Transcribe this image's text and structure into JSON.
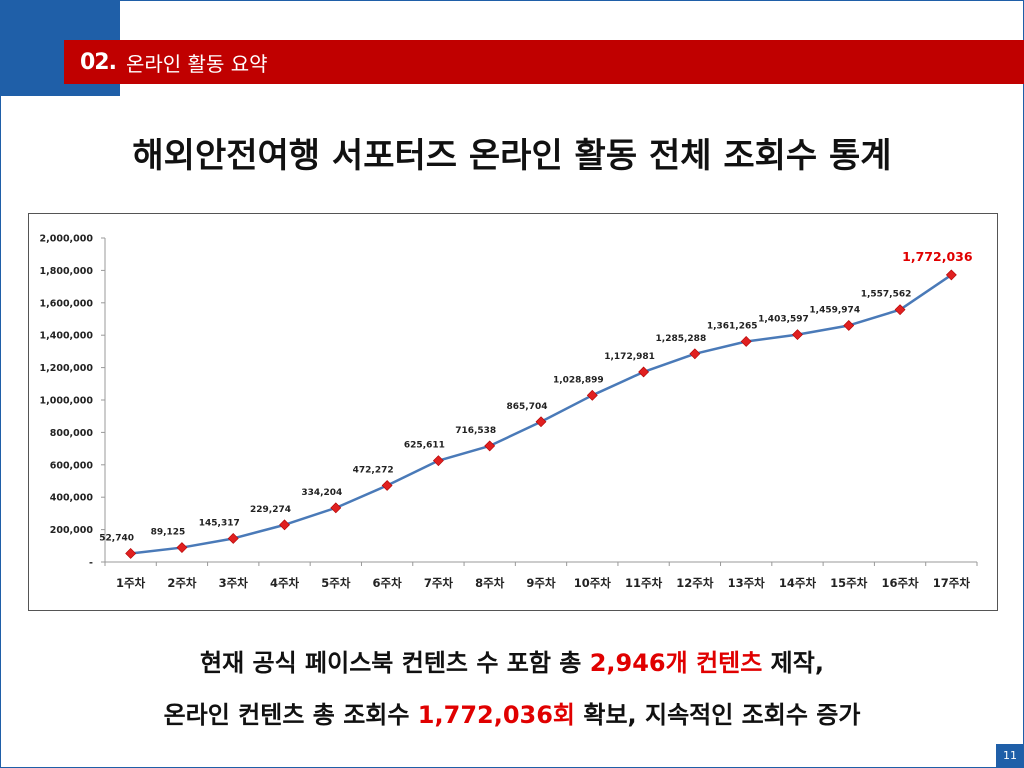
{
  "header": {
    "section_number": "02.",
    "section_title": "온라인 활동 요약"
  },
  "title": "해외안전여행 서포터즈 온라인 활동 전체 조회수 통계",
  "summary": {
    "line1": {
      "prefix": "현재 공식 페이스북 컨텐츠 수 포함 총 ",
      "highlight": "2,946개 컨텐츠",
      "suffix": " 제작,"
    },
    "line2": {
      "prefix": "온라인 컨텐츠 총 조회수 ",
      "highlight": "1,772,036회",
      "suffix": " 확보, 지속적인 조회수 증가"
    }
  },
  "page_number": "11",
  "colors": {
    "brand_blue": "#1f5fa8",
    "header_red": "#c00000",
    "highlight_red": "#e00000",
    "line": "#4a7ab8",
    "marker": "#e02020"
  },
  "chart_data": {
    "type": "line",
    "title": "",
    "xlabel": "",
    "ylabel": "",
    "ylim": [
      0,
      2000000
    ],
    "yticks": [
      0,
      200000,
      400000,
      600000,
      800000,
      1000000,
      1200000,
      1400000,
      1600000,
      1800000,
      2000000
    ],
    "ytick_labels": [
      "-",
      "200,000",
      "400,000",
      "600,000",
      "800,000",
      "1,000,000",
      "1,200,000",
      "1,400,000",
      "1,600,000",
      "1,800,000",
      "2,000,000"
    ],
    "categories": [
      "1주차",
      "2주차",
      "3주차",
      "4주차",
      "5주차",
      "6주차",
      "7주차",
      "8주차",
      "9주차",
      "10주차",
      "11주차",
      "12주차",
      "13주차",
      "14주차",
      "15주차",
      "16주차",
      "17주차"
    ],
    "series": [
      {
        "values": [
          52740,
          89125,
          145317,
          229274,
          334204,
          472272,
          625611,
          716538,
          865704,
          1028899,
          1172981,
          1285288,
          1361265,
          1403597,
          1459974,
          1557562,
          1772036
        ],
        "labels": [
          "52,740",
          "89,125",
          "145,317",
          "229,274",
          "334,204",
          "472,272",
          "625,611",
          "716,538",
          "865,704",
          "1,028,899",
          "1,172,981",
          "1,285,288",
          "1,361,265",
          "1,403,597",
          "1,459,974",
          "1,557,562",
          "1,772,036"
        ]
      }
    ],
    "grid": false,
    "legend": "none",
    "marker": "diamond",
    "last_label_highlighted": true
  }
}
